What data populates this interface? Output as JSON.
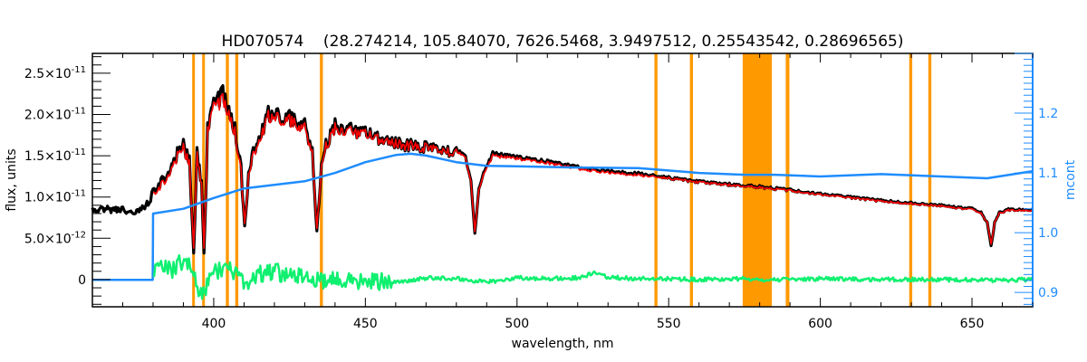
{
  "chart_data": {
    "type": "line",
    "title": "HD070574    (28.274214, 105.84070, 7626.5468, 3.9497512, 0.25543542, 0.28696565)",
    "xlabel": "wavelength, nm",
    "ylabel": "flux, units",
    "y2label": "mcont",
    "xlim": [
      360,
      670
    ],
    "ylim": [
      -3.3e-12,
      2.74e-11
    ],
    "y2lim": [
      0.876,
      1.3
    ],
    "grid": false,
    "x_ticks": [
      400,
      450,
      500,
      550,
      600,
      650
    ],
    "y_ticks": [
      {
        "value": 0,
        "label": "0",
        "exp": ""
      },
      {
        "value": 5e-12,
        "label": "5.0×10",
        "exp": "-12"
      },
      {
        "value": 1e-11,
        "label": "1.0×10",
        "exp": "-11"
      },
      {
        "value": 1.5e-11,
        "label": "1.5×10",
        "exp": "-11"
      },
      {
        "value": 2e-11,
        "label": "2.0×10",
        "exp": "-11"
      },
      {
        "value": 2.5e-11,
        "label": "2.5×10",
        "exp": "-11"
      }
    ],
    "y2_ticks": [
      0.9,
      1.0,
      1.1,
      1.2
    ],
    "colors": {
      "observed": "#000000",
      "model": "#ff0000",
      "continuum": "#1e8cff",
      "residual": "#10f070",
      "masked": "#ff9900",
      "right_axis": "#1e8cff"
    },
    "masked_regions_nm": [
      [
        392.9,
        393.8
      ],
      [
        396.2,
        397.1
      ],
      [
        404.0,
        405.0
      ],
      [
        407.1,
        408.1
      ],
      [
        435.0,
        436.0
      ],
      [
        545.3,
        546.3
      ],
      [
        557.0,
        558.0
      ],
      [
        574.4,
        584.0
      ],
      [
        588.6,
        589.8
      ],
      [
        629.3,
        630.3
      ],
      [
        635.6,
        636.6
      ]
    ],
    "series": [
      {
        "id": "observed",
        "axis": "left",
        "x": [
          360,
          365,
          370,
          375,
          378,
          380,
          383,
          385,
          388,
          390,
          392,
          393.4,
          394.5,
          396,
          396.8,
          398,
          400,
          403,
          405,
          407,
          409,
          410.2,
          411.5,
          413,
          418,
          425,
          430,
          432.5,
          434,
          435.5,
          437,
          440,
          450,
          460,
          465,
          470,
          480,
          483,
          484.8,
          486.1,
          487.4,
          489,
          492,
          500,
          510,
          520,
          530,
          540,
          550,
          560,
          570,
          580,
          590,
          600,
          610,
          620,
          630,
          640,
          650,
          653,
          655,
          656.3,
          657.5,
          659,
          662,
          670
        ],
        "y": [
          8.7e-12,
          8.9e-12,
          8.8e-12,
          8.5e-12,
          9.5e-12,
          1.1e-11,
          1.25e-11,
          1.3e-11,
          1.6e-11,
          1.7e-11,
          1.5e-11,
          3.2e-12,
          1.6e-11,
          1.2e-11,
          3.2e-12,
          1.9e-11,
          2.2e-11,
          2.35e-11,
          2.1e-11,
          1.9e-11,
          1.4e-11,
          6.5e-12,
          1.3e-11,
          1.6e-11,
          2.1e-11,
          2.05e-11,
          1.95e-11,
          1.6e-11,
          5.9e-12,
          1.4e-11,
          1.7e-11,
          1.95e-11,
          1.85e-11,
          1.72e-11,
          1.7e-11,
          1.67e-11,
          1.6e-11,
          1.5e-11,
          1.2e-11,
          5.6e-12,
          1.1e-11,
          1.3e-11,
          1.55e-11,
          1.5e-11,
          1.45e-11,
          1.38e-11,
          1.33e-11,
          1.3e-11,
          1.25e-11,
          1.2e-11,
          1.17e-11,
          1.14e-11,
          1.1e-11,
          1.05e-11,
          1.01e-11,
          9.7e-12,
          9.4e-12,
          9.1e-12,
          8.7e-12,
          8.2e-12,
          7e-12,
          4.1e-12,
          7e-12,
          8.2e-12,
          8.6e-12,
          8.6e-12
        ]
      },
      {
        "id": "model",
        "axis": "left",
        "x": [
          380,
          383,
          385,
          388,
          390,
          392,
          393.4,
          394.5,
          396,
          396.8,
          398,
          400,
          403,
          405,
          407,
          409,
          410.2,
          411.5,
          413,
          418,
          425,
          430,
          432.5,
          434,
          435.5,
          437,
          440,
          450,
          460,
          465,
          470,
          480,
          483,
          484.8,
          486.1,
          487.4,
          489,
          492,
          500,
          510,
          520,
          530,
          540,
          550,
          560,
          570,
          580,
          590,
          600,
          610,
          620,
          630,
          640,
          650,
          653,
          655,
          656.3,
          657.5,
          659,
          662,
          670
        ],
        "y": [
          1.05e-11,
          1.2e-11,
          1.27e-11,
          1.55e-11,
          1.65e-11,
          1.45e-11,
          3.8e-12,
          1.55e-11,
          1.18e-11,
          3.8e-12,
          1.85e-11,
          2.15e-11,
          2.25e-11,
          2.05e-11,
          1.85e-11,
          1.35e-11,
          6.8e-12,
          1.28e-11,
          1.55e-11,
          2.05e-11,
          2e-11,
          1.9e-11,
          1.57e-11,
          6.2e-12,
          1.38e-11,
          1.67e-11,
          1.9e-11,
          1.82e-11,
          1.7e-11,
          1.68e-11,
          1.65e-11,
          1.58e-11,
          1.48e-11,
          1.19e-11,
          5.8e-12,
          1.09e-11,
          1.28e-11,
          1.52e-11,
          1.48e-11,
          1.43e-11,
          1.36e-11,
          1.31e-11,
          1.28e-11,
          1.24e-11,
          1.19e-11,
          1.16e-11,
          1.13e-11,
          1.09e-11,
          1.04e-11,
          1e-11,
          9.6e-12,
          9.3e-12,
          9e-12,
          8.6e-12,
          8.1e-12,
          7e-12,
          4.3e-12,
          7e-12,
          8.1e-12,
          8.5e-12,
          8.5e-12
        ]
      },
      {
        "id": "continuum",
        "axis": "right",
        "x": [
          360,
          379.9,
          380,
          390,
          400,
          410,
          420,
          430,
          440,
          450,
          460,
          465,
          470,
          480,
          490,
          500,
          520,
          540,
          560,
          575,
          585,
          600,
          620,
          640,
          655,
          670
        ],
        "y": [
          0.921,
          0.921,
          1.032,
          1.04,
          1.058,
          1.074,
          1.08,
          1.086,
          1.1,
          1.118,
          1.13,
          1.132,
          1.129,
          1.118,
          1.112,
          1.111,
          1.109,
          1.108,
          1.1,
          1.097,
          1.097,
          1.094,
          1.098,
          1.094,
          1.091,
          1.103
        ]
      },
      {
        "id": "residual",
        "axis": "left",
        "x": [
          380,
          383,
          386,
          389,
          391,
          393,
          395,
          397,
          399,
          401,
          403,
          405,
          408,
          411,
          415,
          420,
          425,
          430,
          435,
          440,
          445,
          450,
          455,
          460,
          470,
          480,
          490,
          500,
          510,
          520,
          525,
          530,
          540,
          550,
          560,
          570,
          580,
          590,
          600,
          620,
          640,
          656,
          670
        ],
        "y": [
          5e-13,
          1.5e-12,
          1e-12,
          2e-12,
          2.5e-12,
          1e-12,
          -2e-12,
          -1.5e-12,
          5e-13,
          1e-12,
          1.5e-12,
          1.2e-12,
          5e-13,
          -3e-13,
          8e-13,
          1e-12,
          5e-13,
          3e-13,
          -2e-13,
          2e-13,
          -3e-13,
          1e-13,
          -2e-13,
          -4e-13,
          2e-13,
          1e-13,
          -3e-13,
          2e-13,
          1e-13,
          2e-13,
          8e-13,
          3e-13,
          1e-13,
          1e-13,
          0,
          1e-13,
          0,
          0,
          1e-13,
          0,
          0,
          -1e-13,
          0
        ]
      }
    ]
  }
}
